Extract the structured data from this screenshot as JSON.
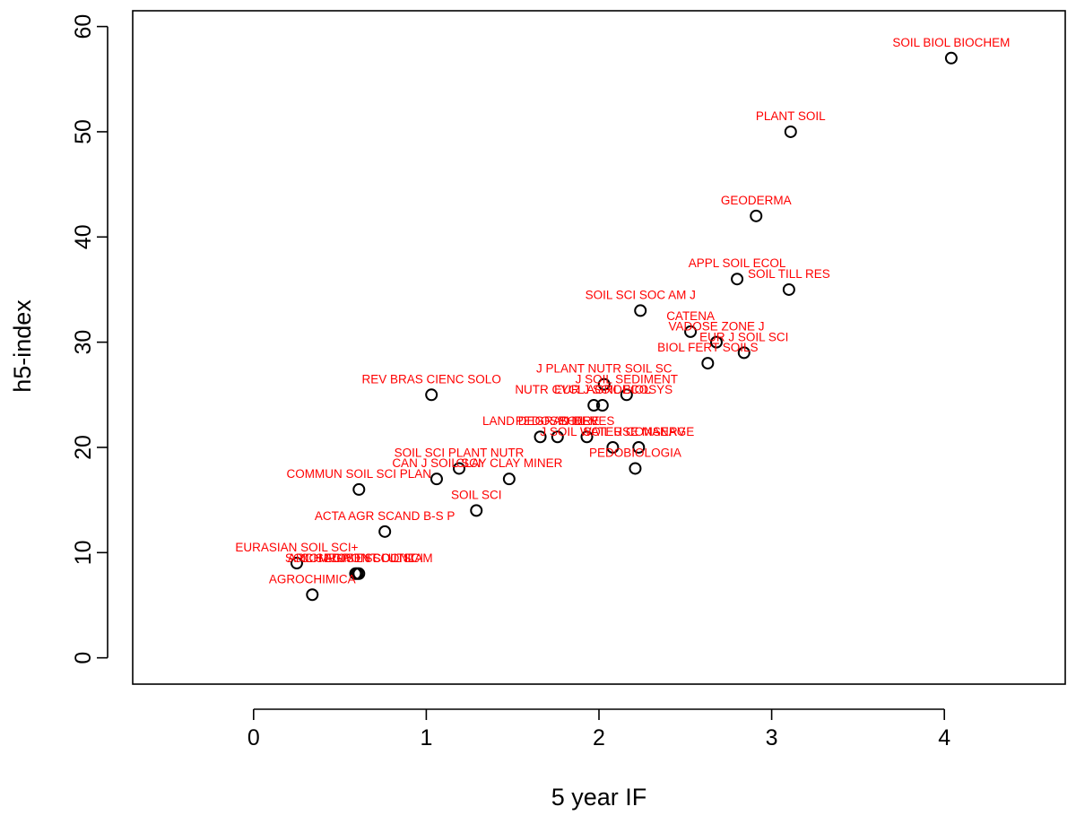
{
  "chart_data": {
    "type": "scatter",
    "xlabel": "5 year IF",
    "ylabel": "h5-index",
    "xlim": [
      -0.7,
      4.7
    ],
    "ylim": [
      -2.5,
      61.5
    ],
    "x_ticks": [
      0,
      1,
      2,
      3,
      4
    ],
    "y_ticks": [
      0,
      10,
      20,
      30,
      40,
      50,
      60
    ],
    "grid": false,
    "legend": "none",
    "colors": {
      "marker": "#000000",
      "label": "#ff0000"
    },
    "points": [
      {
        "label": "SOIL BIOL BIOCHEM",
        "x": 4.04,
        "y": 57
      },
      {
        "label": "PLANT SOIL",
        "x": 3.11,
        "y": 50
      },
      {
        "label": "GEODERMA",
        "x": 2.91,
        "y": 42
      },
      {
        "label": "APPL SOIL ECOL",
        "x": 2.8,
        "y": 36
      },
      {
        "label": "SOIL TILL RES",
        "x": 3.1,
        "y": 35
      },
      {
        "label": "SOIL SCI SOC AM J",
        "x": 2.24,
        "y": 33
      },
      {
        "label": "CATENA",
        "x": 2.53,
        "y": 31
      },
      {
        "label": "VADOSE ZONE J",
        "x": 2.68,
        "y": 30
      },
      {
        "label": "EUR J SOIL SCI",
        "x": 2.84,
        "y": 29
      },
      {
        "label": "BIOL FERT SOILS",
        "x": 2.63,
        "y": 28
      },
      {
        "label": "J PLANT NUTR SOIL SC",
        "x": 2.03,
        "y": 26
      },
      {
        "label": "J SOIL SEDIMENT",
        "x": 2.16,
        "y": 25
      },
      {
        "label": "NUTR CYCL AGROECOSYS",
        "x": 1.97,
        "y": 24
      },
      {
        "label": "EUR J SOIL BIOL",
        "x": 2.02,
        "y": 24
      },
      {
        "label": "REV BRAS CIENC SOLO",
        "x": 1.03,
        "y": 25
      },
      {
        "label": "LAND DEGRAD DEV",
        "x": 1.66,
        "y": 21
      },
      {
        "label": "PEDOSPHERE",
        "x": 1.76,
        "y": 21
      },
      {
        "label": "SOIL RES",
        "x": 1.93,
        "y": 21
      },
      {
        "label": "J SOIL WATER CONSERV",
        "x": 2.08,
        "y": 20
      },
      {
        "label": "SOIL USE MANAGE",
        "x": 2.23,
        "y": 20
      },
      {
        "label": "PEDOBIOLOGIA",
        "x": 2.21,
        "y": 18
      },
      {
        "label": "SOIL SCI PLANT NUTR",
        "x": 1.19,
        "y": 18
      },
      {
        "label": "CAN J SOIL SCI",
        "x": 1.06,
        "y": 17
      },
      {
        "label": "CLAY CLAY MINER",
        "x": 1.48,
        "y": 17
      },
      {
        "label": "COMMUN SOIL SCI PLAN",
        "x": 0.61,
        "y": 16
      },
      {
        "label": "SOIL SCI",
        "x": 1.29,
        "y": 14
      },
      {
        "label": "ACTA AGR SCAND B-S P",
        "x": 0.76,
        "y": 12
      },
      {
        "label": "EURASIAN SOIL SCI+",
        "x": 0.25,
        "y": 9
      },
      {
        "label": "ARCH AGRON SOIL SCI",
        "x": 0.59,
        "y": 8
      },
      {
        "label": "COMPOST SCI UTIL",
        "x": 0.6,
        "y": 8
      },
      {
        "label": "SOIL SEDIMENT CONTAM",
        "x": 0.61,
        "y": 8
      },
      {
        "label": "AGROCHIMICA",
        "x": 0.34,
        "y": 6
      }
    ]
  }
}
